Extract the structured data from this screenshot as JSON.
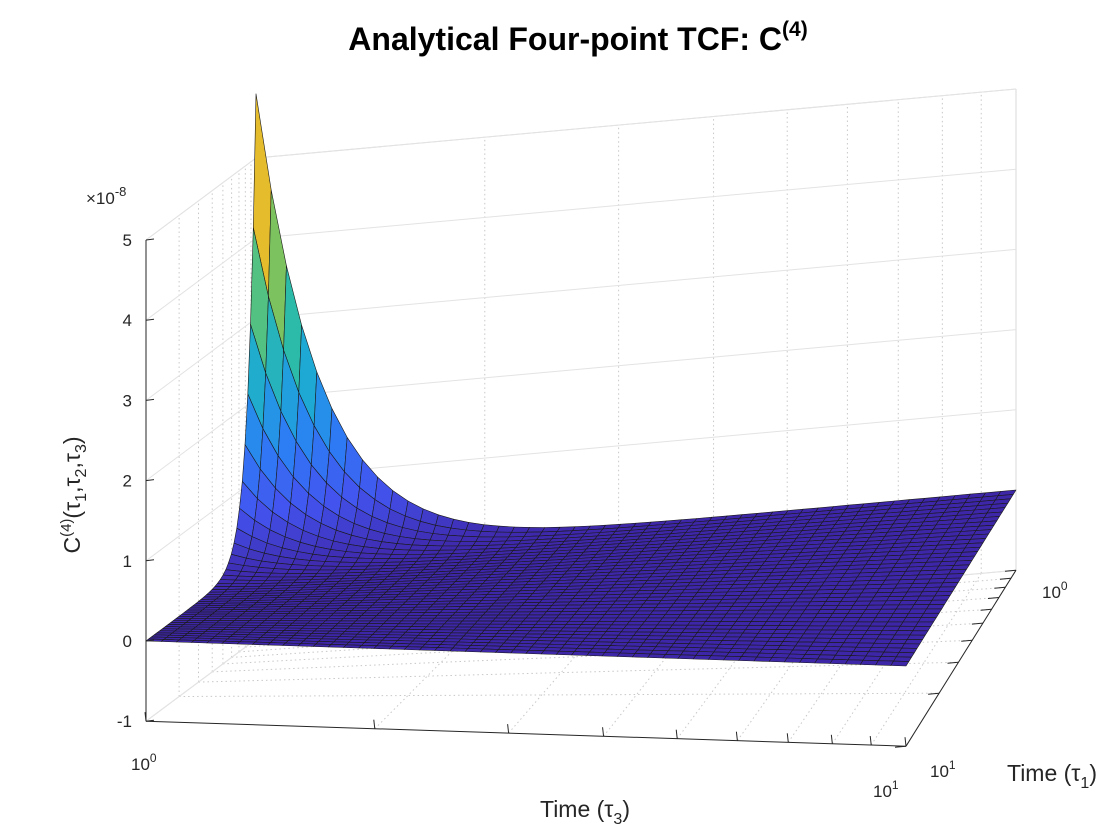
{
  "chart_data": {
    "type": "surface",
    "title": "Analytical Four-point TCF: C",
    "title_superscript": "(4)",
    "zlabel_main": "C",
    "zlabel_superscript": "(4)",
    "zlabel_args": "(τ",
    "zlabel_sub1": "1",
    "zlabel_sep1": ",τ",
    "zlabel_sub2": "2",
    "zlabel_sep2": ",τ",
    "zlabel_sub3": "3",
    "zlabel_close": ")",
    "x_label": "Time (τ",
    "x_label_sub": "3",
    "x_label_close": ")",
    "y_label": "Time (τ",
    "y_label_sub": "1",
    "y_label_close": ")",
    "z_scale_prefix": "×10",
    "z_scale_exponent": "-8",
    "z_multiplier": 1e-08,
    "x_ticks": [
      {
        "base": "10",
        "exp": "0"
      },
      {
        "base": "10",
        "exp": "1"
      }
    ],
    "y_ticks": [
      {
        "base": "10",
        "exp": "0"
      },
      {
        "base": "10",
        "exp": "1"
      }
    ],
    "z_ticks": [
      "-1",
      "0",
      "1",
      "2",
      "3",
      "4",
      "5"
    ],
    "x_range": [
      1,
      10
    ],
    "y_range": [
      1,
      10
    ],
    "x_scale": "log",
    "y_scale": "log",
    "zlim": [
      -1,
      5
    ],
    "grid": true,
    "colormap": "parula",
    "colormap_stops": [
      "#3e26a8",
      "#4354f0",
      "#2c7ff5",
      "#1da8d6",
      "#2fbf9f",
      "#89c455",
      "#e1b92c",
      "#fcd22e",
      "#f9fb0e"
    ],
    "peak_value": 5.8,
    "peak_at": {
      "tau3": 1,
      "tau1": 1
    },
    "floor_value": 0.0
  }
}
